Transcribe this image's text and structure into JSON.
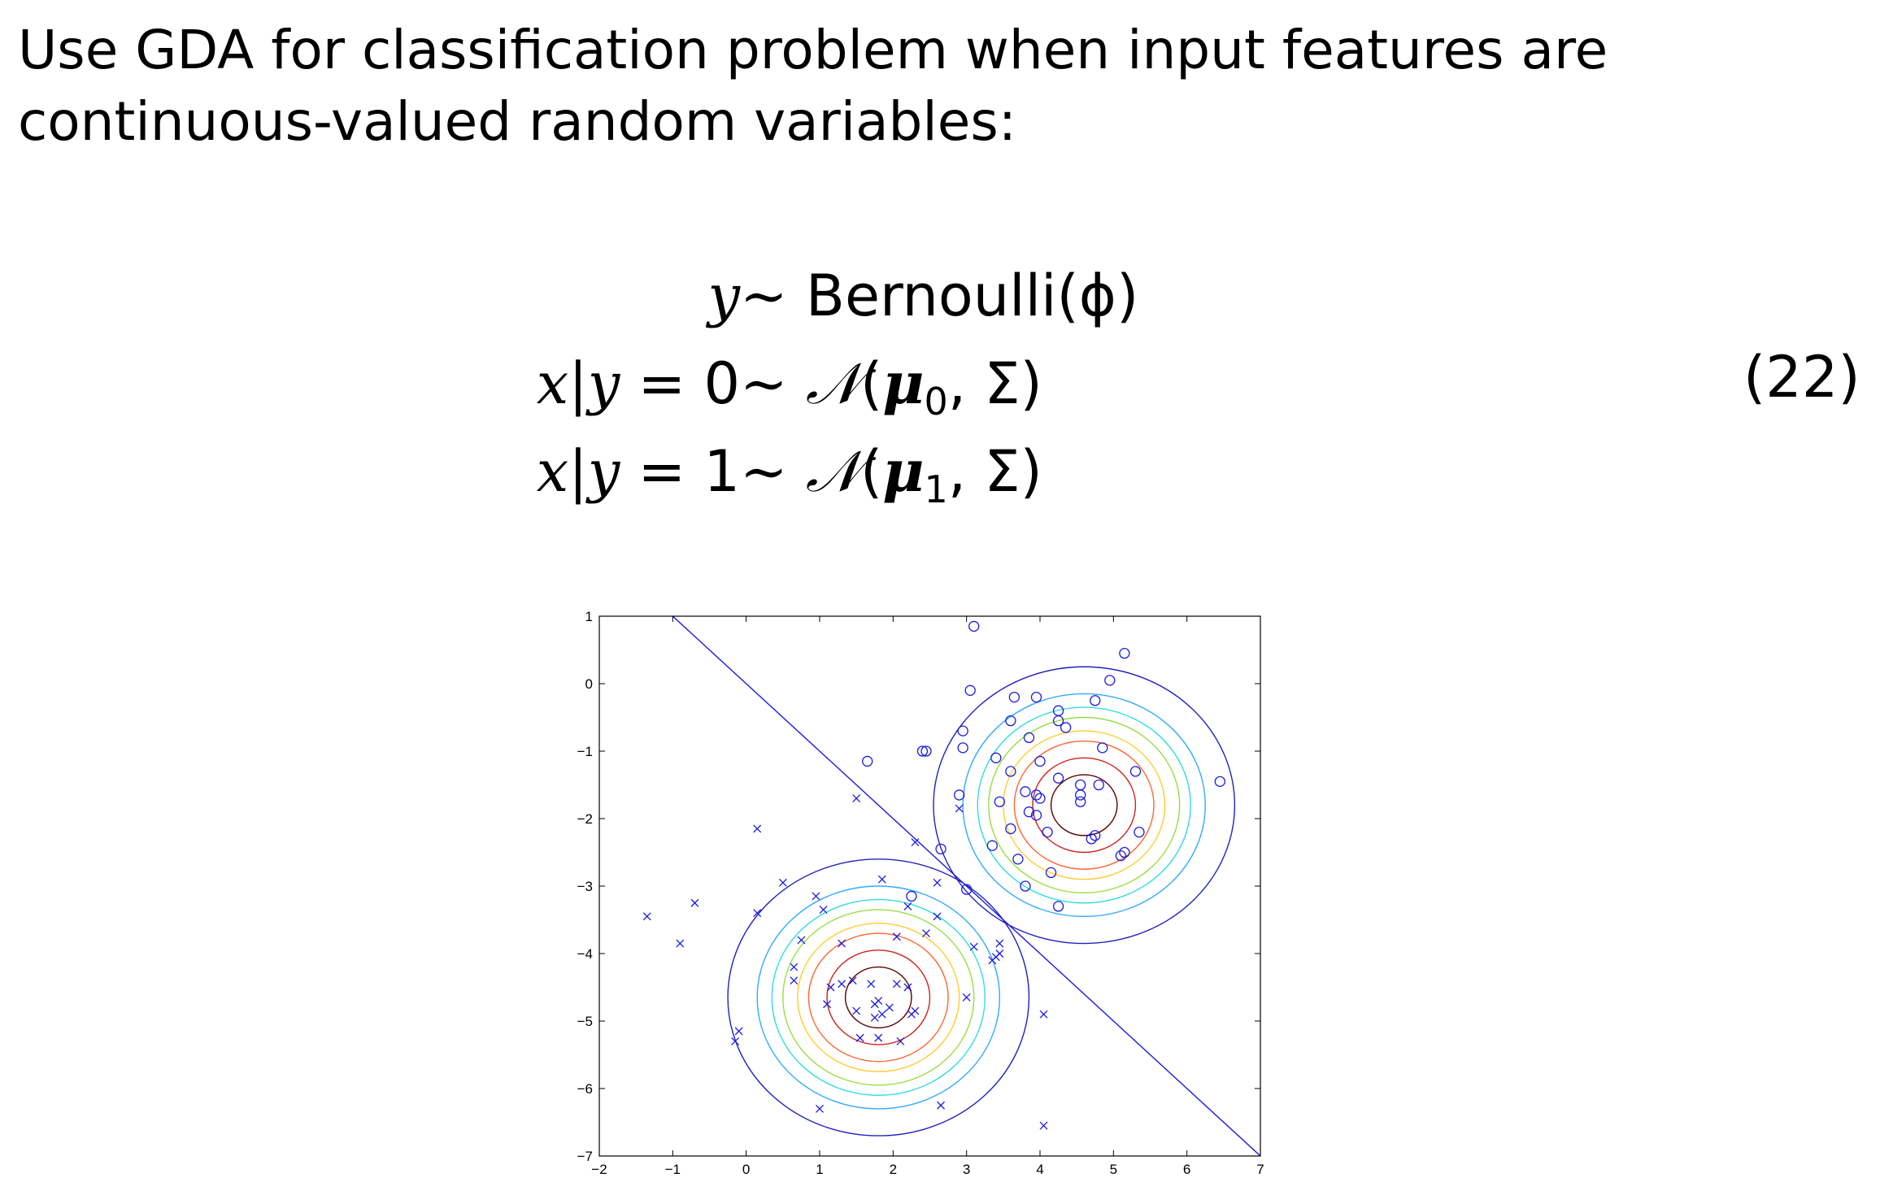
{
  "intro": {
    "line1": "Use GDA for classification problem when input features are",
    "line2": "continuous-valued random variables:"
  },
  "equations": [
    {
      "lhs_var": "y",
      "rel": "∼",
      "rhs": "Bernoulli(ϕ)"
    },
    {
      "lhs_var": "x|y",
      "lhs_eq": " = 0",
      "rel": "∼",
      "dist": "𝒩",
      "mu": "μ",
      "sub": "0",
      "rest": ", Σ)"
    },
    {
      "lhs_var": "x|y",
      "lhs_eq": " = 1",
      "rel": "∼",
      "dist": "𝒩",
      "mu": "μ",
      "sub": "1",
      "rest": ", Σ)"
    }
  ],
  "equation_number": "(22)",
  "chart_data": {
    "type": "scatter",
    "title": "",
    "xlabel": "",
    "ylabel": "",
    "xlim": [
      -2,
      7
    ],
    "ylim": [
      -7,
      1
    ],
    "x_ticks": [
      "−2",
      "−1",
      "0",
      "1",
      "2",
      "3",
      "4",
      "5",
      "6",
      "7"
    ],
    "y_ticks": [
      "1",
      "0",
      "−1",
      "−2",
      "−3",
      "−4",
      "−5",
      "−6",
      "−7"
    ],
    "grid": false,
    "marker_color": "#1a1adf",
    "series": [
      {
        "marker": "o",
        "points": [
          [
            3.1,
            0.85
          ],
          [
            5.15,
            0.45
          ],
          [
            4.95,
            0.05
          ],
          [
            3.05,
            -0.1
          ],
          [
            3.65,
            -0.2
          ],
          [
            3.95,
            -0.2
          ],
          [
            4.75,
            -0.25
          ],
          [
            4.25,
            -0.4
          ],
          [
            4.25,
            -0.55
          ],
          [
            4.35,
            -0.65
          ],
          [
            3.6,
            -0.55
          ],
          [
            2.95,
            -0.7
          ],
          [
            3.85,
            -0.8
          ],
          [
            2.95,
            -0.95
          ],
          [
            2.4,
            -1.0
          ],
          [
            2.45,
            -1.0
          ],
          [
            1.65,
            -1.15
          ],
          [
            4.85,
            -0.95
          ],
          [
            3.4,
            -1.1
          ],
          [
            3.6,
            -1.3
          ],
          [
            4.0,
            -1.15
          ],
          [
            5.3,
            -1.3
          ],
          [
            6.45,
            -1.45
          ],
          [
            4.25,
            -1.4
          ],
          [
            4.55,
            -1.5
          ],
          [
            4.8,
            -1.5
          ],
          [
            3.8,
            -1.6
          ],
          [
            3.95,
            -1.65
          ],
          [
            4.0,
            -1.7
          ],
          [
            4.55,
            -1.65
          ],
          [
            4.55,
            -1.75
          ],
          [
            3.45,
            -1.75
          ],
          [
            2.9,
            -1.65
          ],
          [
            3.85,
            -1.9
          ],
          [
            3.95,
            -1.95
          ],
          [
            3.6,
            -2.15
          ],
          [
            4.1,
            -2.2
          ],
          [
            4.75,
            -2.25
          ],
          [
            5.35,
            -2.2
          ],
          [
            4.7,
            -2.3
          ],
          [
            3.35,
            -2.4
          ],
          [
            2.65,
            -2.45
          ],
          [
            5.1,
            -2.55
          ],
          [
            5.15,
            -2.5
          ],
          [
            3.7,
            -2.6
          ],
          [
            4.15,
            -2.8
          ],
          [
            3.8,
            -3.0
          ],
          [
            3.0,
            -3.05
          ],
          [
            2.25,
            -3.15
          ],
          [
            4.25,
            -3.3
          ]
        ]
      },
      {
        "marker": "x",
        "points": [
          [
            1.5,
            -1.7
          ],
          [
            0.15,
            -2.15
          ],
          [
            2.3,
            -2.35
          ],
          [
            1.85,
            -2.9
          ],
          [
            2.6,
            -2.95
          ],
          [
            0.5,
            -2.95
          ],
          [
            0.95,
            -3.15
          ],
          [
            -0.7,
            -3.25
          ],
          [
            -1.35,
            -3.45
          ],
          [
            0.15,
            -3.4
          ],
          [
            1.05,
            -3.35
          ],
          [
            2.2,
            -3.3
          ],
          [
            2.6,
            -3.45
          ],
          [
            2.9,
            -1.85
          ],
          [
            2.45,
            -3.7
          ],
          [
            3.1,
            -3.9
          ],
          [
            3.45,
            -3.85
          ],
          [
            3.4,
            -4.05
          ],
          [
            3.45,
            -4.0
          ],
          [
            3.35,
            -4.1
          ],
          [
            -0.9,
            -3.85
          ],
          [
            2.05,
            -3.75
          ],
          [
            0.75,
            -3.8
          ],
          [
            1.3,
            -3.85
          ],
          [
            0.65,
            -4.2
          ],
          [
            0.65,
            -4.4
          ],
          [
            1.15,
            -4.5
          ],
          [
            1.3,
            -4.45
          ],
          [
            1.45,
            -4.4
          ],
          [
            1.7,
            -4.45
          ],
          [
            2.05,
            -4.45
          ],
          [
            2.2,
            -4.5
          ],
          [
            1.1,
            -4.75
          ],
          [
            1.75,
            -4.75
          ],
          [
            1.8,
            -4.7
          ],
          [
            1.85,
            -4.9
          ],
          [
            1.95,
            -4.8
          ],
          [
            1.5,
            -4.85
          ],
          [
            1.75,
            -4.95
          ],
          [
            2.25,
            -4.9
          ],
          [
            2.3,
            -4.85
          ],
          [
            3.0,
            -4.65
          ],
          [
            4.05,
            -4.9
          ],
          [
            -0.1,
            -5.15
          ],
          [
            -0.15,
            -5.3
          ],
          [
            1.55,
            -5.25
          ],
          [
            1.8,
            -5.25
          ],
          [
            2.1,
            -5.3
          ],
          [
            1.0,
            -6.3
          ],
          [
            2.65,
            -6.25
          ],
          [
            4.05,
            -6.55
          ]
        ]
      }
    ],
    "contours": [
      {
        "center": [
          4.6,
          -1.8
        ],
        "radii": [
          0.45,
          0.7,
          0.95,
          1.1,
          1.3,
          1.45,
          1.65,
          2.05
        ]
      },
      {
        "center": [
          1.8,
          -4.65
        ],
        "radii": [
          0.45,
          0.7,
          0.95,
          1.1,
          1.3,
          1.45,
          1.65,
          2.05
        ]
      }
    ],
    "contour_colors": [
      "#5a0000",
      "#cc2222",
      "#ff6633",
      "#ffcc33",
      "#99dd44",
      "#33dddd",
      "#33aaff",
      "#2222bb"
    ],
    "decision_boundary": [
      [
        -1.0,
        1.0
      ],
      [
        7.0,
        -7.0
      ]
    ]
  }
}
